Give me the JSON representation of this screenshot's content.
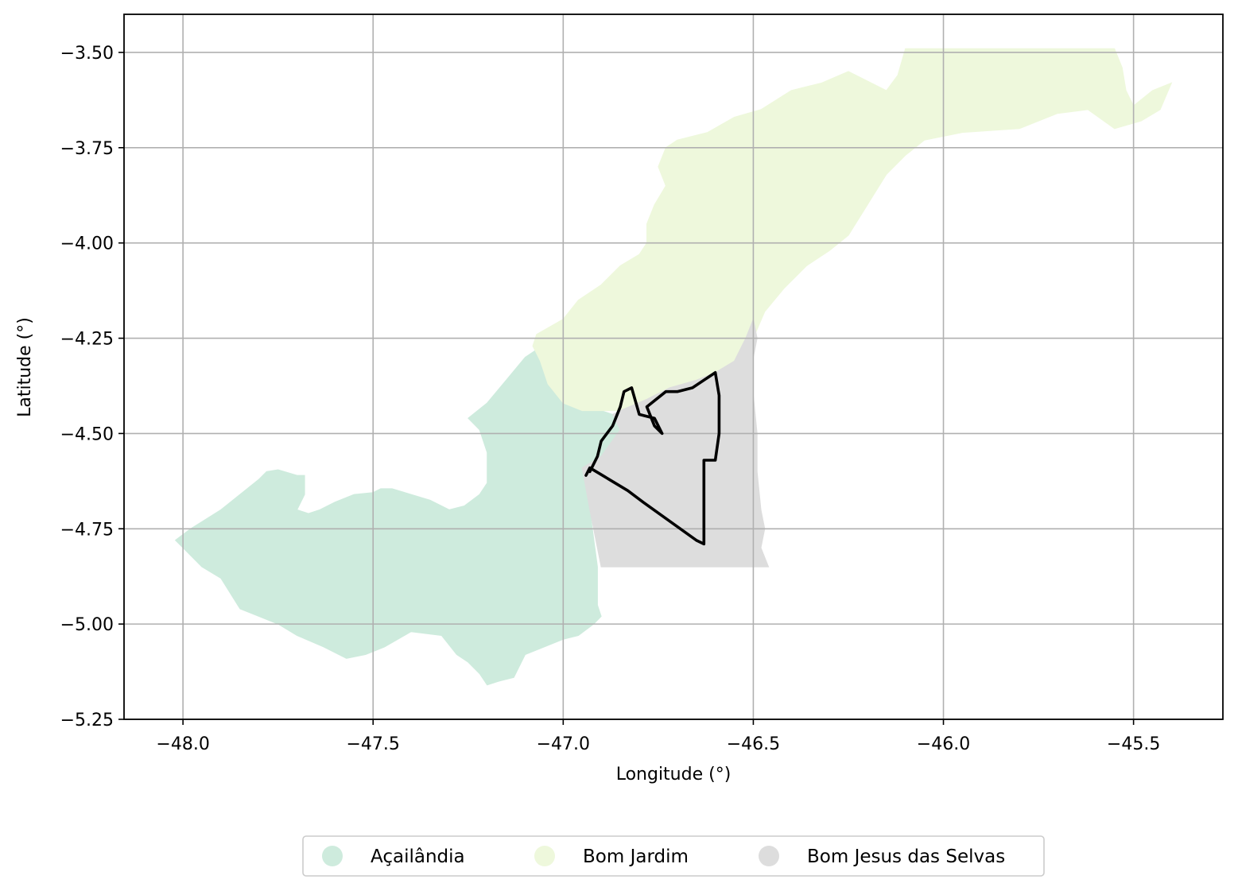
{
  "chart_data": {
    "type": "map",
    "xlabel": "Longitude (°)",
    "ylabel": "Latitude (°)",
    "xlim": [
      -48.155,
      -45.265
    ],
    "ylim": [
      -5.25,
      -3.4
    ],
    "grid": true,
    "x_ticks": [
      {
        "value": -48.0,
        "label": "−48.0"
      },
      {
        "value": -47.5,
        "label": "−47.5"
      },
      {
        "value": -47.0,
        "label": "−47.0"
      },
      {
        "value": -46.5,
        "label": "−46.5"
      },
      {
        "value": -46.0,
        "label": "−46.0"
      },
      {
        "value": -45.5,
        "label": "−45.5"
      }
    ],
    "y_ticks": [
      {
        "value": -3.5,
        "label": "−3.50"
      },
      {
        "value": -3.75,
        "label": "−3.75"
      },
      {
        "value": -4.0,
        "label": "−4.00"
      },
      {
        "value": -4.25,
        "label": "−4.25"
      },
      {
        "value": -4.5,
        "label": "−4.50"
      },
      {
        "value": -4.75,
        "label": "−4.75"
      },
      {
        "value": -5.0,
        "label": "−5.00"
      },
      {
        "value": -5.25,
        "label": "−5.25"
      }
    ],
    "legend_position": "bottom-center",
    "regions": [
      {
        "name": "Açailândia",
        "color": "#ceebdd",
        "coords": [
          [
            -48.02,
            -4.78
          ],
          [
            -47.98,
            -4.75
          ],
          [
            -47.9,
            -4.7
          ],
          [
            -47.8,
            -4.62
          ],
          [
            -47.78,
            -4.6
          ],
          [
            -47.75,
            -4.595
          ],
          [
            -47.7,
            -4.61
          ],
          [
            -47.68,
            -4.61
          ],
          [
            -47.68,
            -4.66
          ],
          [
            -47.7,
            -4.7
          ],
          [
            -47.67,
            -4.71
          ],
          [
            -47.64,
            -4.7
          ],
          [
            -47.6,
            -4.68
          ],
          [
            -47.55,
            -4.66
          ],
          [
            -47.5,
            -4.655
          ],
          [
            -47.48,
            -4.645
          ],
          [
            -47.45,
            -4.645
          ],
          [
            -47.4,
            -4.66
          ],
          [
            -47.35,
            -4.675
          ],
          [
            -47.3,
            -4.7
          ],
          [
            -47.26,
            -4.69
          ],
          [
            -47.22,
            -4.66
          ],
          [
            -47.2,
            -4.63
          ],
          [
            -47.2,
            -4.55
          ],
          [
            -47.22,
            -4.49
          ],
          [
            -47.25,
            -4.46
          ],
          [
            -47.2,
            -4.42
          ],
          [
            -47.15,
            -4.36
          ],
          [
            -47.1,
            -4.3
          ],
          [
            -47.07,
            -4.28
          ],
          [
            -47.08,
            -4.27
          ],
          [
            -47.06,
            -4.31
          ],
          [
            -47.04,
            -4.37
          ],
          [
            -47.0,
            -4.42
          ],
          [
            -46.95,
            -4.44
          ],
          [
            -46.9,
            -4.44
          ],
          [
            -46.87,
            -4.45
          ],
          [
            -46.85,
            -4.49
          ],
          [
            -46.9,
            -4.56
          ],
          [
            -46.95,
            -4.59
          ],
          [
            -46.93,
            -4.7
          ],
          [
            -46.91,
            -4.85
          ],
          [
            -46.91,
            -4.95
          ],
          [
            -46.9,
            -4.98
          ],
          [
            -46.92,
            -5.0
          ],
          [
            -46.96,
            -5.03
          ],
          [
            -47.0,
            -5.04
          ],
          [
            -47.05,
            -5.06
          ],
          [
            -47.1,
            -5.08
          ],
          [
            -47.13,
            -5.14
          ],
          [
            -47.17,
            -5.15
          ],
          [
            -47.2,
            -5.16
          ],
          [
            -47.22,
            -5.13
          ],
          [
            -47.25,
            -5.1
          ],
          [
            -47.28,
            -5.08
          ],
          [
            -47.32,
            -5.03
          ],
          [
            -47.4,
            -5.02
          ],
          [
            -47.47,
            -5.06
          ],
          [
            -47.52,
            -5.08
          ],
          [
            -47.57,
            -5.09
          ],
          [
            -47.63,
            -5.06
          ],
          [
            -47.7,
            -5.03
          ],
          [
            -47.75,
            -5.0
          ],
          [
            -47.8,
            -4.98
          ],
          [
            -47.85,
            -4.96
          ],
          [
            -47.9,
            -4.88
          ],
          [
            -47.95,
            -4.85
          ],
          [
            -48.0,
            -4.8
          ]
        ]
      },
      {
        "name": "Bom Jardim",
        "color": "#eef8dc",
        "coords": [
          [
            -47.06,
            -4.31
          ],
          [
            -47.08,
            -4.27
          ],
          [
            -47.07,
            -4.24
          ],
          [
            -47.0,
            -4.2
          ],
          [
            -46.96,
            -4.15
          ],
          [
            -46.9,
            -4.11
          ],
          [
            -46.85,
            -4.06
          ],
          [
            -46.8,
            -4.03
          ],
          [
            -46.78,
            -4.0
          ],
          [
            -46.78,
            -3.95
          ],
          [
            -46.76,
            -3.9
          ],
          [
            -46.73,
            -3.85
          ],
          [
            -46.75,
            -3.8
          ],
          [
            -46.73,
            -3.75
          ],
          [
            -46.7,
            -3.73
          ],
          [
            -46.62,
            -3.71
          ],
          [
            -46.55,
            -3.67
          ],
          [
            -46.48,
            -3.65
          ],
          [
            -46.4,
            -3.6
          ],
          [
            -46.32,
            -3.58
          ],
          [
            -46.25,
            -3.55
          ],
          [
            -46.15,
            -3.6
          ],
          [
            -46.12,
            -3.56
          ],
          [
            -46.1,
            -3.49
          ],
          [
            -45.8,
            -3.49
          ],
          [
            -45.55,
            -3.49
          ],
          [
            -45.53,
            -3.54
          ],
          [
            -45.52,
            -3.6
          ],
          [
            -45.5,
            -3.64
          ],
          [
            -45.45,
            -3.6
          ],
          [
            -45.4,
            -3.58
          ],
          [
            -45.43,
            -3.65
          ],
          [
            -45.48,
            -3.68
          ],
          [
            -45.55,
            -3.7
          ],
          [
            -45.62,
            -3.65
          ],
          [
            -45.7,
            -3.66
          ],
          [
            -45.8,
            -3.7
          ],
          [
            -45.95,
            -3.71
          ],
          [
            -46.05,
            -3.73
          ],
          [
            -46.1,
            -3.77
          ],
          [
            -46.15,
            -3.82
          ],
          [
            -46.2,
            -3.9
          ],
          [
            -46.25,
            -3.98
          ],
          [
            -46.3,
            -4.02
          ],
          [
            -46.36,
            -4.06
          ],
          [
            -46.42,
            -4.12
          ],
          [
            -46.47,
            -4.18
          ],
          [
            -46.5,
            -4.25
          ],
          [
            -46.55,
            -4.31
          ],
          [
            -46.6,
            -4.34
          ],
          [
            -46.65,
            -4.36
          ],
          [
            -46.72,
            -4.38
          ],
          [
            -46.78,
            -4.41
          ],
          [
            -46.85,
            -4.44
          ],
          [
            -46.9,
            -4.44
          ],
          [
            -46.95,
            -4.44
          ],
          [
            -47.0,
            -4.42
          ],
          [
            -47.04,
            -4.37
          ]
        ]
      },
      {
        "name": "Bom Jesus das Selvas",
        "color": "#dddddd",
        "coords": [
          [
            -46.5,
            -4.2
          ],
          [
            -46.49,
            -4.25
          ],
          [
            -46.5,
            -4.3
          ],
          [
            -46.5,
            -4.4
          ],
          [
            -46.49,
            -4.5
          ],
          [
            -46.49,
            -4.6
          ],
          [
            -46.48,
            -4.7
          ],
          [
            -46.47,
            -4.75
          ],
          [
            -46.48,
            -4.8
          ],
          [
            -46.46,
            -4.85
          ],
          [
            -46.9,
            -4.85
          ],
          [
            -46.93,
            -4.7
          ],
          [
            -46.95,
            -4.59
          ],
          [
            -46.9,
            -4.56
          ],
          [
            -46.85,
            -4.49
          ],
          [
            -46.87,
            -4.45
          ],
          [
            -46.85,
            -4.44
          ],
          [
            -46.78,
            -4.41
          ],
          [
            -46.72,
            -4.38
          ],
          [
            -46.65,
            -4.36
          ],
          [
            -46.6,
            -4.34
          ],
          [
            -46.55,
            -4.31
          ],
          [
            -46.52,
            -4.25
          ]
        ]
      }
    ],
    "outline": {
      "color": "#000000",
      "coords": [
        [
          -46.93,
          -4.6
        ],
        [
          -46.91,
          -4.56
        ],
        [
          -46.9,
          -4.52
        ],
        [
          -46.87,
          -4.48
        ],
        [
          -46.85,
          -4.43
        ],
        [
          -46.84,
          -4.39
        ],
        [
          -46.82,
          -4.38
        ],
        [
          -46.8,
          -4.45
        ],
        [
          -46.76,
          -4.46
        ],
        [
          -46.74,
          -4.5
        ],
        [
          -46.76,
          -4.48
        ],
        [
          -46.78,
          -4.43
        ],
        [
          -46.73,
          -4.39
        ],
        [
          -46.7,
          -4.39
        ],
        [
          -46.66,
          -4.38
        ],
        [
          -46.6,
          -4.34
        ],
        [
          -46.59,
          -4.4
        ],
        [
          -46.59,
          -4.5
        ],
        [
          -46.6,
          -4.57
        ],
        [
          -46.63,
          -4.57
        ],
        [
          -46.63,
          -4.65
        ],
        [
          -46.63,
          -4.79
        ],
        [
          -46.65,
          -4.78
        ],
        [
          -46.72,
          -4.73
        ],
        [
          -46.79,
          -4.68
        ],
        [
          -46.83,
          -4.65
        ],
        [
          -46.88,
          -4.62
        ],
        [
          -46.93,
          -4.59
        ],
        [
          -46.94,
          -4.61
        ]
      ]
    },
    "legend": [
      {
        "label": "Açailândia",
        "color": "#ceebdd"
      },
      {
        "label": "Bom Jardim",
        "color": "#eef8dc"
      },
      {
        "label": "Bom Jesus das Selvas",
        "color": "#dddddd"
      }
    ]
  }
}
